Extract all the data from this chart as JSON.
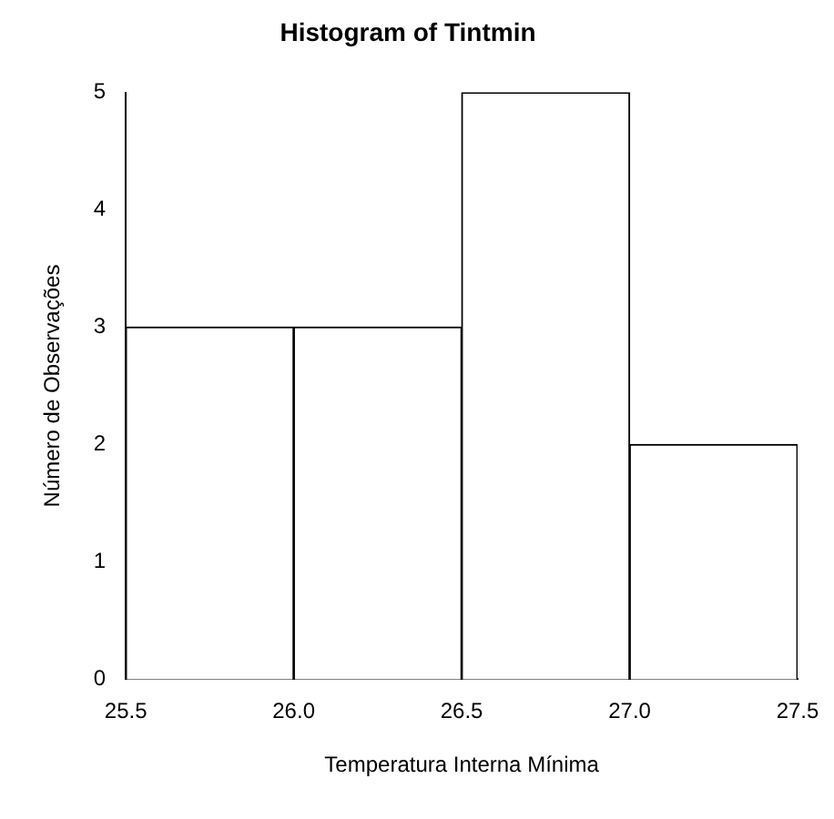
{
  "chart_data": {
    "type": "histogram",
    "title": "Histogram of Tintmin",
    "xlabel": "Temperatura Interna Mínima",
    "ylabel": "Número de Observações",
    "bins": [
      25.5,
      26.0,
      26.5,
      27.0,
      27.5
    ],
    "values": [
      3,
      3,
      5,
      2
    ],
    "color": "#ffffff",
    "xlim": [
      25.5,
      27.5
    ],
    "xticks": [
      {
        "value": 25.5,
        "label": "25.5"
      },
      {
        "value": 26,
        "label": "26.0"
      },
      {
        "value": 26.5,
        "label": "26.5"
      },
      {
        "value": 27,
        "label": "27.0"
      },
      {
        "value": 27.5,
        "label": "27.5"
      }
    ],
    "ylim": [
      0,
      5
    ],
    "yticks": [
      0,
      1,
      2,
      3,
      4,
      5
    ],
    "grid": false,
    "legend": false
  }
}
